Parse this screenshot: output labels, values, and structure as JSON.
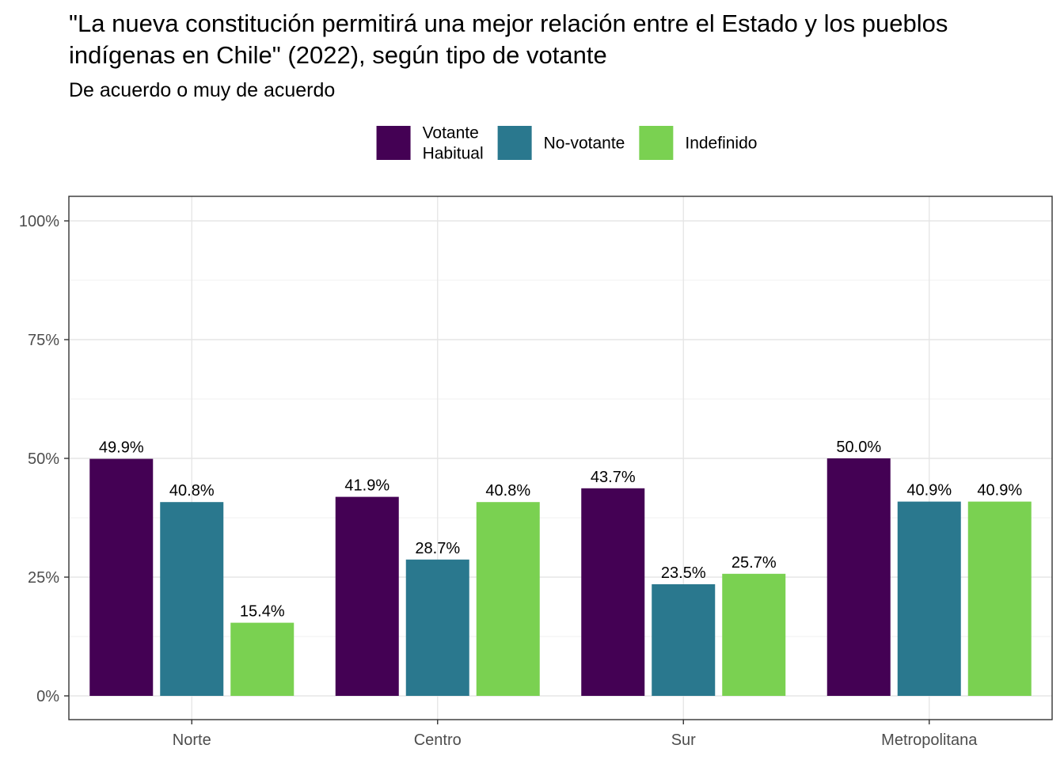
{
  "chart_data": {
    "type": "bar",
    "title_lines": [
      "\"La nueva constitución permitirá una mejor relación entre el Estado y los pueblos",
      "indígenas en Chile\" (2022), según tipo de votante"
    ],
    "subtitle": "De acuerdo o muy de acuerdo",
    "xlabel": "",
    "ylabel": "",
    "categories": [
      "Norte",
      "Centro",
      "Sur",
      "Metropolitana"
    ],
    "series": [
      {
        "name": "Votante Habitual",
        "name_lines": [
          "Votante",
          "Habitual"
        ],
        "color": "#440154",
        "values": [
          49.9,
          41.9,
          43.7,
          50.0
        ],
        "labels": [
          "49.9%",
          "41.9%",
          "43.7%",
          "50.0%"
        ]
      },
      {
        "name": "No-votante",
        "name_lines": [
          "No-votante"
        ],
        "color": "#2A788E",
        "values": [
          40.8,
          28.7,
          23.5,
          40.9
        ],
        "labels": [
          "40.8%",
          "28.7%",
          "23.5%",
          "40.9%"
        ]
      },
      {
        "name": "Indefinido",
        "name_lines": [
          "Indefinido"
        ],
        "color": "#7AD151",
        "values": [
          15.4,
          40.8,
          25.7,
          40.9
        ],
        "labels": [
          "15.4%",
          "40.8%",
          "25.7%",
          "40.9%"
        ]
      }
    ],
    "ylim": [
      0,
      100
    ],
    "yticks": [
      0,
      25,
      50,
      75,
      100
    ],
    "ytick_labels": [
      "0%",
      "25%",
      "50%",
      "75%",
      "100%"
    ],
    "grid": true,
    "legend_position": "top"
  }
}
